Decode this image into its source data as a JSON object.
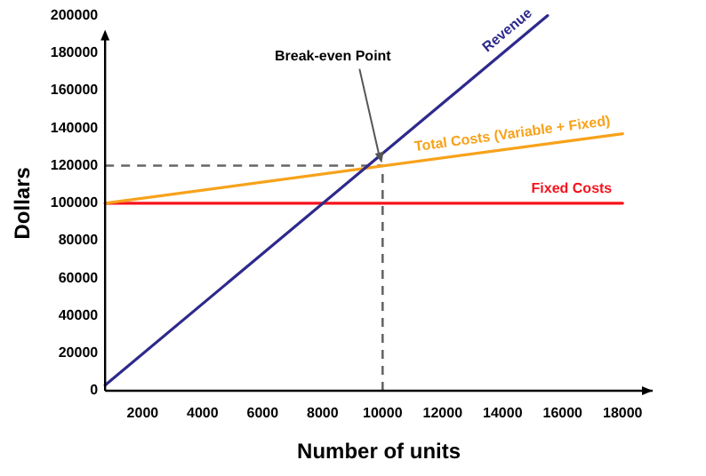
{
  "chart_data": {
    "type": "line",
    "xlabel": "Number of units",
    "ylabel": "Dollars",
    "xlim": [
      750,
      19000
    ],
    "ylim": [
      0,
      200000
    ],
    "xticks": [
      2000,
      4000,
      6000,
      8000,
      10000,
      12000,
      14000,
      16000,
      18000
    ],
    "yticks": [
      0,
      20000,
      40000,
      60000,
      80000,
      100000,
      120000,
      140000,
      160000,
      180000,
      200000
    ],
    "series": [
      {
        "name": "Revenue",
        "color": "#2e2a8c",
        "x": [
          750,
          15500
        ],
        "values": [
          3000,
          200000
        ]
      },
      {
        "name": "Total Costs (Variable + Fixed)",
        "color": "#f7a21b",
        "x": [
          750,
          18000
        ],
        "values": [
          100000,
          137000
        ]
      },
      {
        "name": "Fixed Costs",
        "color": "#f5141e",
        "x": [
          750,
          18000
        ],
        "values": [
          100000,
          100000
        ]
      }
    ],
    "ref_lines": [
      {
        "axis": "y",
        "value": 120000,
        "color": "#666666",
        "line_style": "dashed"
      },
      {
        "axis": "x",
        "value": 10000,
        "color": "#666666",
        "line_style": "dashed"
      }
    ],
    "annotations": [
      {
        "text": "Break-even Point",
        "x": 10000,
        "y": 120000
      }
    ],
    "grid": false,
    "marker": "none",
    "line_style": "solid"
  }
}
